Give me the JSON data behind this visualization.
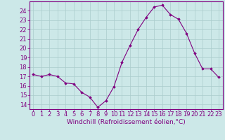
{
  "x": [
    0,
    1,
    2,
    3,
    4,
    5,
    6,
    7,
    8,
    9,
    10,
    11,
    12,
    13,
    14,
    15,
    16,
    17,
    18,
    19,
    20,
    21,
    22,
    23
  ],
  "y": [
    17.2,
    17.0,
    17.2,
    17.0,
    16.3,
    16.2,
    15.3,
    14.8,
    13.7,
    14.4,
    15.9,
    18.5,
    20.3,
    22.0,
    23.3,
    24.4,
    24.6,
    23.6,
    23.1,
    21.6,
    19.5,
    17.8,
    17.8,
    16.9
  ],
  "line_color": "#800080",
  "marker": "D",
  "marker_size": 1.8,
  "bg_color": "#cce8e8",
  "grid_color": "#aacccc",
  "xlabel": "Windchill (Refroidissement éolien,°C)",
  "xlabel_color": "#800080",
  "tick_color": "#800080",
  "spine_color": "#800080",
  "ylim": [
    13.5,
    25.0
  ],
  "yticks": [
    14,
    15,
    16,
    17,
    18,
    19,
    20,
    21,
    22,
    23,
    24
  ],
  "xlim": [
    -0.5,
    23.5
  ],
  "xticks": [
    0,
    1,
    2,
    3,
    4,
    5,
    6,
    7,
    8,
    9,
    10,
    11,
    12,
    13,
    14,
    15,
    16,
    17,
    18,
    19,
    20,
    21,
    22,
    23
  ],
  "tick_fontsize": 6,
  "xlabel_fontsize": 6.5
}
